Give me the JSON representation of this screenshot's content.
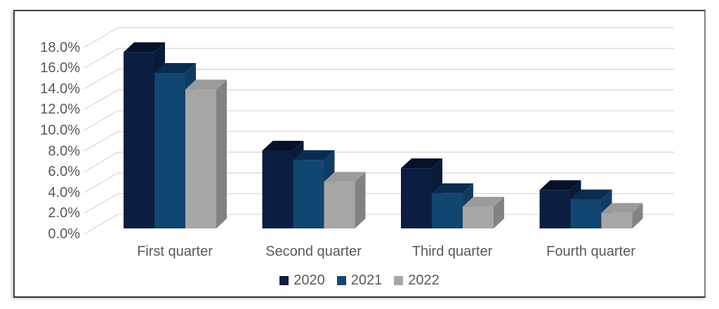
{
  "chart_data": {
    "type": "bar",
    "subtype": "3d-clustered-column",
    "title": "",
    "xlabel": "",
    "ylabel": "",
    "categories": [
      "First quarter",
      "Second quarter",
      "Third quarter",
      "Fourth quarter"
    ],
    "series": [
      {
        "name": "2020",
        "values": [
          17.0,
          7.5,
          5.8,
          3.7
        ],
        "color_front": "#0B1E42",
        "color_top": "#061229",
        "color_side": "#0A1B3A"
      },
      {
        "name": "2021",
        "values": [
          15.0,
          6.6,
          3.4,
          2.8
        ],
        "color_front": "#114670",
        "color_top": "#0A2C4E",
        "color_side": "#0F3C63"
      },
      {
        "name": "2022",
        "values": [
          13.4,
          4.5,
          2.1,
          1.5
        ],
        "color_front": "#A6A6A6",
        "color_top": "#9B9B9B",
        "color_side": "#828282"
      }
    ],
    "y_ticks": [
      "18.0%",
      "16.0%",
      "14.0%",
      "12.0%",
      "10.0%",
      "8.0%",
      "6.0%",
      "4.0%",
      "2.0%",
      "0.0%"
    ],
    "y_tick_values": [
      18,
      16,
      14,
      12,
      10,
      8,
      6,
      4,
      2,
      0
    ],
    "ylim": [
      0,
      19
    ],
    "value_format": "percent",
    "grid": true,
    "legend_position": "bottom"
  },
  "colors": {
    "gridline": "#D9D9D9",
    "axis_text": "#595959",
    "frame_border": "#3F3F3F",
    "background": "#FFFFFF"
  }
}
